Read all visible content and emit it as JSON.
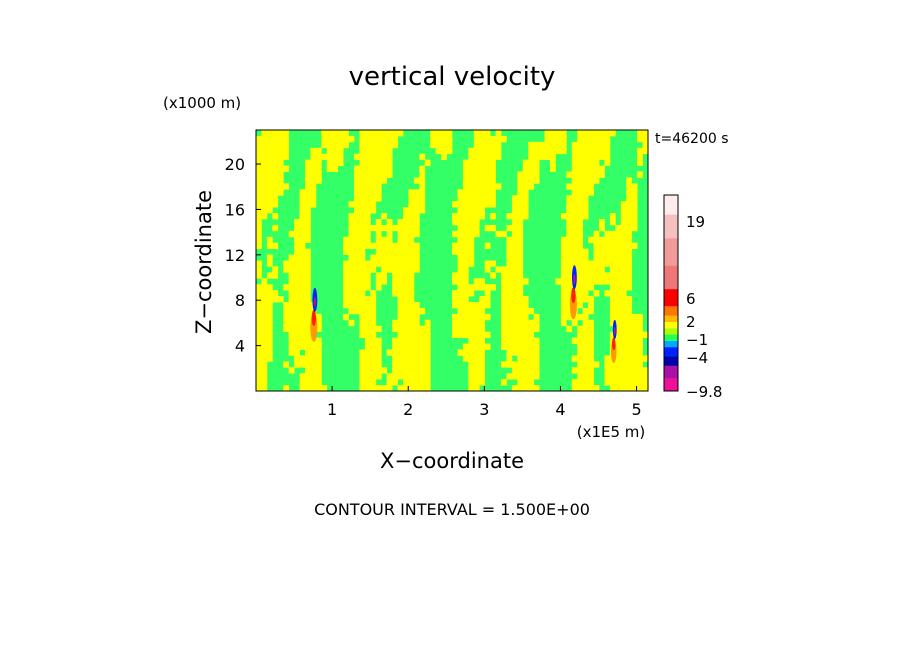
{
  "chart_data": {
    "type": "heatmap",
    "title": "vertical velocity",
    "xlabel": "X−coordinate",
    "ylabel": "Z−coordinate",
    "x_unit": "(x1E5 m)",
    "y_unit": "(x1000 m)",
    "time_label": "t=46200 s",
    "footer": "CONTOUR INTERVAL = 1.500E+00",
    "xlim": [
      0,
      5.15
    ],
    "ylim": [
      0,
      23
    ],
    "x_ticks": [
      1,
      2,
      3,
      4,
      5
    ],
    "y_ticks": [
      4,
      8,
      12,
      16,
      20
    ],
    "background_colors": {
      "green": "#33ff66",
      "yellow": "#ffff00"
    },
    "anomalies": [
      {
        "x": 0.76,
        "z_center": 7.5,
        "strength": 1.0
      },
      {
        "x": 4.17,
        "z_center": 9.5,
        "strength": 1.0
      },
      {
        "x": 4.7,
        "z_center": 5.0,
        "strength": 0.8
      }
    ],
    "colorbar": {
      "tick_labels": [
        "19",
        "6",
        "2",
        "−1",
        "−4",
        "−9.8"
      ],
      "levels": [
        {
          "color": "#ee1199"
        },
        {
          "color": "#aa11aa"
        },
        {
          "color": "#0000aa"
        },
        {
          "color": "#0022ff"
        },
        {
          "color": "#00aaff"
        },
        {
          "color": "#22ff55"
        },
        {
          "color": "#aaff00"
        },
        {
          "color": "#ffff00"
        },
        {
          "color": "#ffbb00"
        },
        {
          "color": "#ff7700"
        },
        {
          "color": "#ff0000"
        },
        {
          "color": "#ee7777"
        },
        {
          "color": "#f29a9a"
        },
        {
          "color": "#f6c0c0"
        },
        {
          "color": "#ffecec"
        }
      ]
    }
  }
}
